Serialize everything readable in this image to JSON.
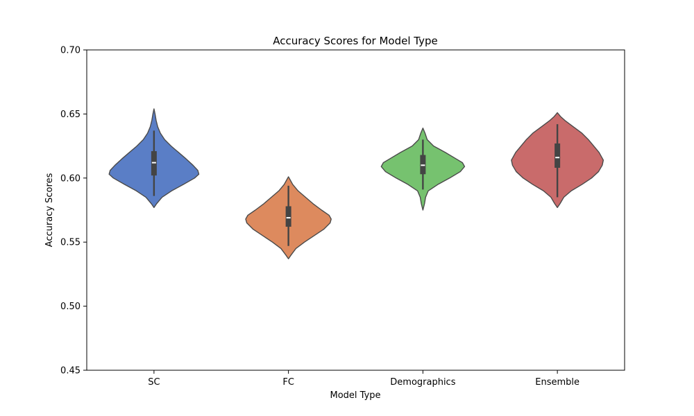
{
  "chart_data": {
    "type": "violin",
    "title": "Accuracy Scores for Model Type",
    "xlabel": "Model Type",
    "ylabel": "Accuracy Scores",
    "ylim": [
      0.45,
      0.7
    ],
    "yticks": [
      "0.45",
      "0.50",
      "0.55",
      "0.60",
      "0.65",
      "0.70"
    ],
    "grid": false,
    "categories": [
      "SC",
      "FC",
      "Demographics",
      "Ensemble"
    ],
    "series": [
      {
        "category": "SC",
        "color": "#5a7ec6",
        "min": 0.577,
        "max": 0.654,
        "whisker_low": 0.586,
        "whisker_high": 0.637,
        "q1": 0.602,
        "median": 0.612,
        "q3": 0.621,
        "density": [
          [
            0.577,
            0.0
          ],
          [
            0.58,
            0.05
          ],
          [
            0.585,
            0.15
          ],
          [
            0.59,
            0.33
          ],
          [
            0.595,
            0.55
          ],
          [
            0.6,
            0.76
          ],
          [
            0.603,
            0.84
          ],
          [
            0.606,
            0.82
          ],
          [
            0.61,
            0.73
          ],
          [
            0.615,
            0.6
          ],
          [
            0.62,
            0.46
          ],
          [
            0.625,
            0.32
          ],
          [
            0.63,
            0.2
          ],
          [
            0.635,
            0.12
          ],
          [
            0.64,
            0.07
          ],
          [
            0.645,
            0.04
          ],
          [
            0.65,
            0.02
          ],
          [
            0.654,
            0.0
          ]
        ]
      },
      {
        "category": "FC",
        "color": "#dd8a5e",
        "min": 0.537,
        "max": 0.601,
        "whisker_low": 0.547,
        "whisker_high": 0.594,
        "q1": 0.562,
        "median": 0.569,
        "q3": 0.578,
        "density": [
          [
            0.537,
            0.0
          ],
          [
            0.54,
            0.05
          ],
          [
            0.545,
            0.14
          ],
          [
            0.55,
            0.3
          ],
          [
            0.555,
            0.48
          ],
          [
            0.56,
            0.66
          ],
          [
            0.565,
            0.78
          ],
          [
            0.568,
            0.8
          ],
          [
            0.571,
            0.76
          ],
          [
            0.575,
            0.62
          ],
          [
            0.58,
            0.46
          ],
          [
            0.585,
            0.32
          ],
          [
            0.59,
            0.18
          ],
          [
            0.595,
            0.08
          ],
          [
            0.598,
            0.04
          ],
          [
            0.601,
            0.0
          ]
        ]
      },
      {
        "category": "Demographics",
        "color": "#76c26f",
        "min": 0.575,
        "max": 0.639,
        "whisker_low": 0.591,
        "whisker_high": 0.63,
        "q1": 0.603,
        "median": 0.61,
        "q3": 0.618,
        "density": [
          [
            0.575,
            0.0
          ],
          [
            0.58,
            0.03
          ],
          [
            0.585,
            0.05
          ],
          [
            0.59,
            0.1
          ],
          [
            0.595,
            0.28
          ],
          [
            0.6,
            0.5
          ],
          [
            0.605,
            0.7
          ],
          [
            0.609,
            0.78
          ],
          [
            0.612,
            0.74
          ],
          [
            0.615,
            0.62
          ],
          [
            0.62,
            0.42
          ],
          [
            0.625,
            0.2
          ],
          [
            0.63,
            0.08
          ],
          [
            0.635,
            0.04
          ],
          [
            0.639,
            0.0
          ]
        ]
      },
      {
        "category": "Ensemble",
        "color": "#c96b6b",
        "min": 0.577,
        "max": 0.651,
        "whisker_low": 0.585,
        "whisker_high": 0.642,
        "q1": 0.608,
        "median": 0.616,
        "q3": 0.627,
        "density": [
          [
            0.577,
            0.0
          ],
          [
            0.58,
            0.05
          ],
          [
            0.585,
            0.12
          ],
          [
            0.59,
            0.26
          ],
          [
            0.595,
            0.46
          ],
          [
            0.6,
            0.64
          ],
          [
            0.605,
            0.77
          ],
          [
            0.61,
            0.84
          ],
          [
            0.614,
            0.86
          ],
          [
            0.62,
            0.78
          ],
          [
            0.625,
            0.68
          ],
          [
            0.63,
            0.58
          ],
          [
            0.635,
            0.46
          ],
          [
            0.64,
            0.3
          ],
          [
            0.645,
            0.14
          ],
          [
            0.648,
            0.06
          ],
          [
            0.651,
            0.0
          ]
        ]
      }
    ]
  }
}
